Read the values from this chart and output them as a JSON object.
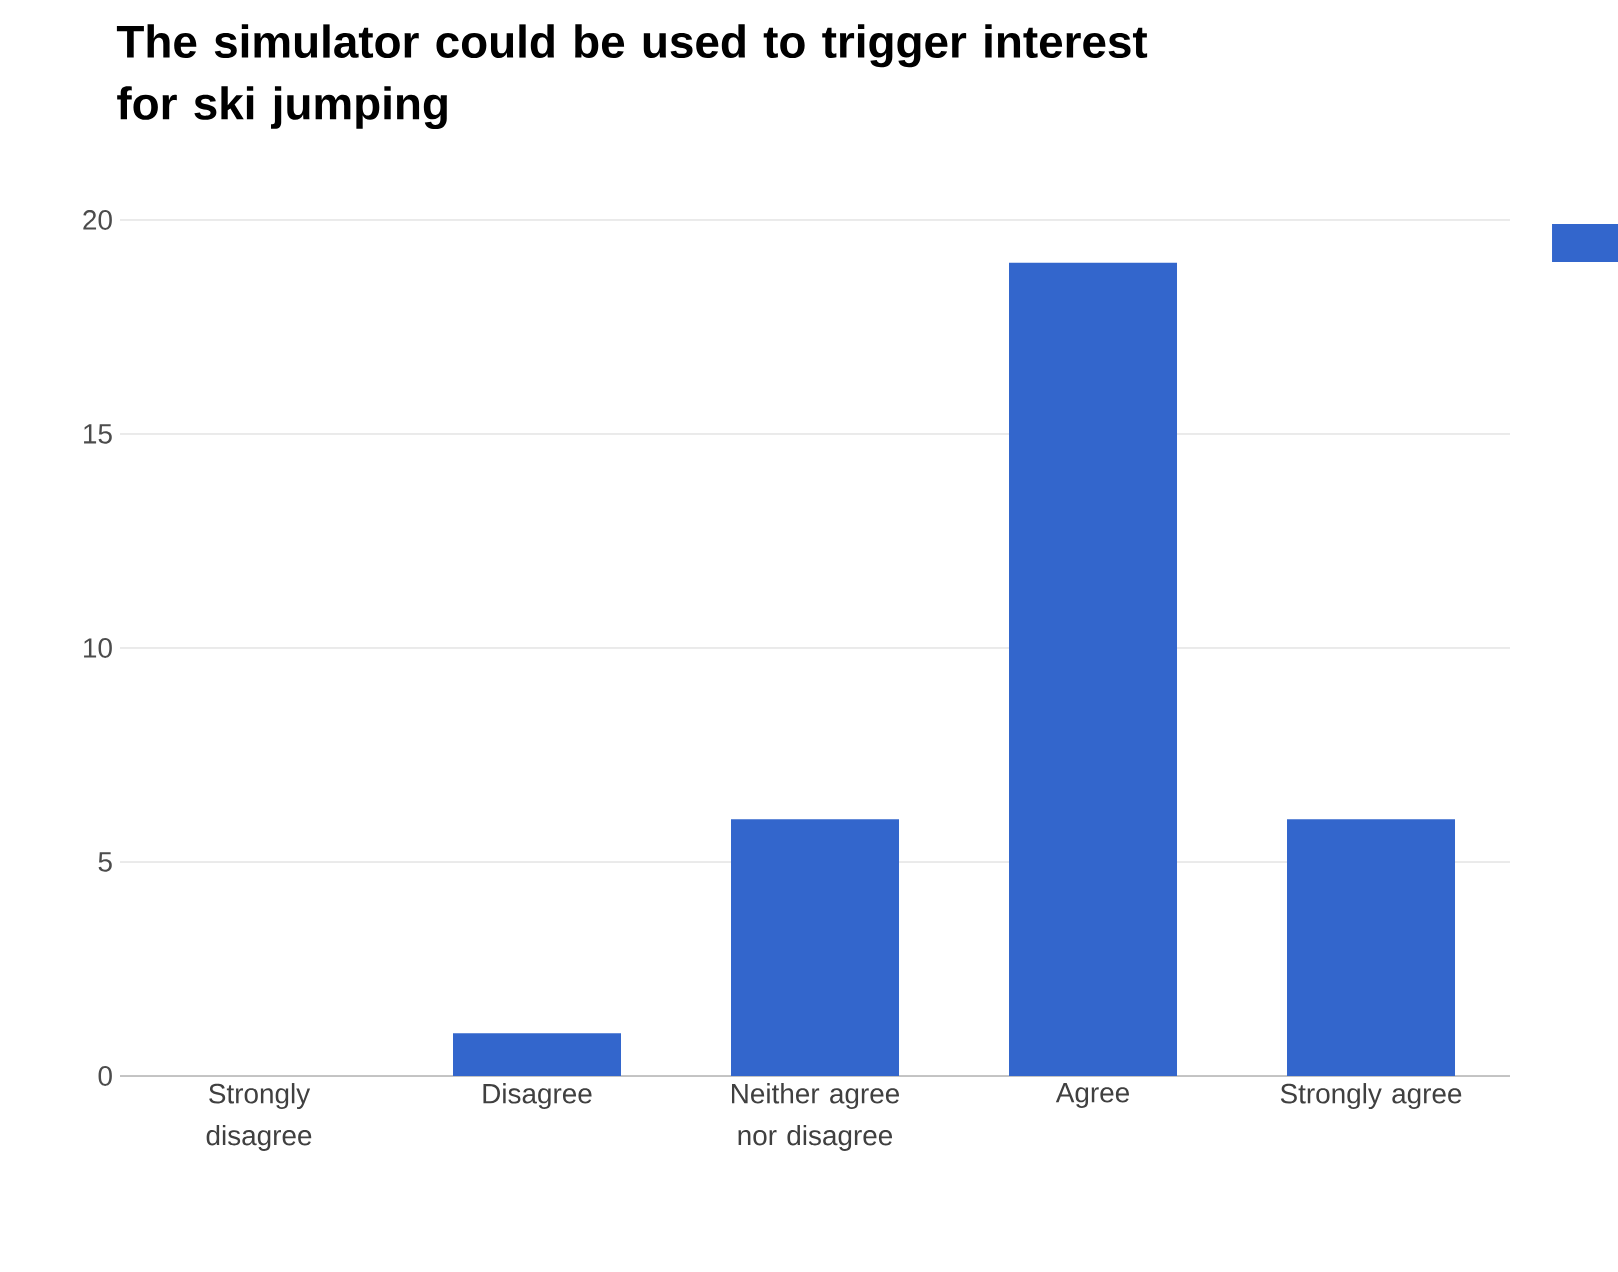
{
  "chart_data": {
    "type": "bar",
    "title": "The simulator could be used to trigger interest for ski jumping",
    "categories": [
      "Strongly disagree",
      "Disagree",
      "Neither agree nor disagree",
      "Agree",
      "Strongly agree"
    ],
    "values": [
      0,
      1,
      6,
      19,
      6
    ],
    "color": "#3366cc",
    "ylim": [
      0,
      20
    ],
    "yticks": [
      0,
      5,
      10,
      15,
      20
    ],
    "grid": "y"
  }
}
